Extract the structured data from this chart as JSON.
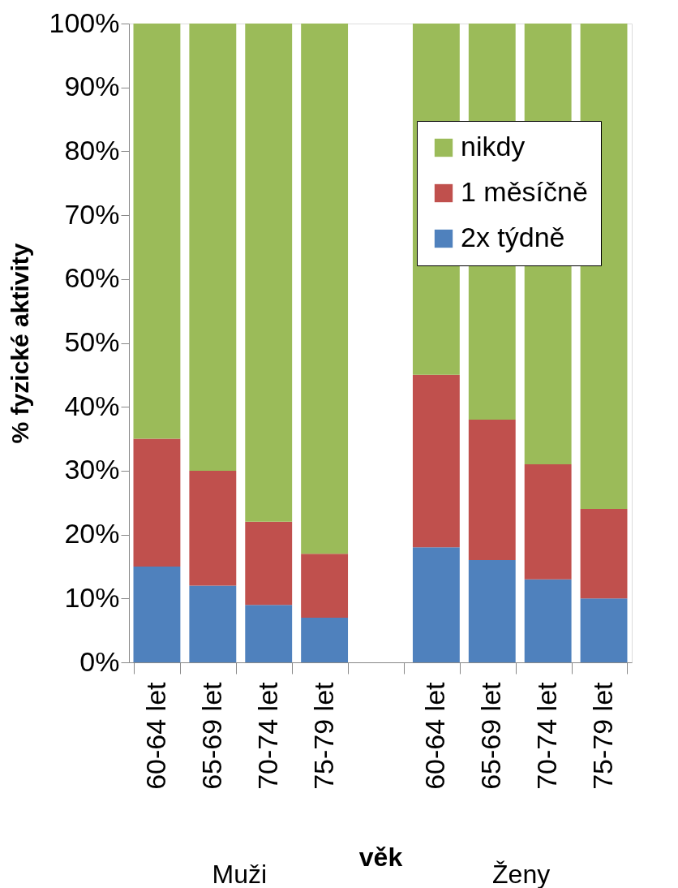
{
  "chart_data": {
    "type": "bar",
    "stacked": true,
    "xlabel": "věk",
    "ylabel": "% fyzické aktivity",
    "categories": [
      "60-64 let",
      "65-69 let",
      "70-74 let",
      "75-79 let",
      null,
      "60-64 let",
      "65-69 let",
      "70-74 let",
      "75-79 let"
    ],
    "series": [
      {
        "name": "2x týdně",
        "color": "#4f81bd",
        "values": [
          15,
          12,
          9,
          7,
          null,
          18,
          16,
          13,
          10
        ]
      },
      {
        "name": "1 měsíčně",
        "color": "#c0504d",
        "values": [
          20,
          18,
          13,
          10,
          null,
          27,
          22,
          18,
          14
        ]
      },
      {
        "name": "nikdy",
        "color": "#9bbb59",
        "values": [
          65,
          70,
          78,
          83,
          null,
          55,
          62,
          69,
          76
        ]
      }
    ],
    "ylim": [
      0,
      100
    ],
    "yticks": [
      {
        "value": 0,
        "label": "0%"
      },
      {
        "value": 10,
        "label": "10%"
      },
      {
        "value": 20,
        "label": "20%"
      },
      {
        "value": 30,
        "label": "30%"
      },
      {
        "value": 40,
        "label": "40%"
      },
      {
        "value": 50,
        "label": "50%"
      },
      {
        "value": 60,
        "label": "60%"
      },
      {
        "value": 70,
        "label": "70%"
      },
      {
        "value": 80,
        "label": "80%"
      },
      {
        "value": 90,
        "label": "90%"
      },
      {
        "value": 100,
        "label": "100%"
      }
    ],
    "annotations": [
      "Muži",
      "Ženy"
    ],
    "legend": "top right",
    "grid": false
  }
}
